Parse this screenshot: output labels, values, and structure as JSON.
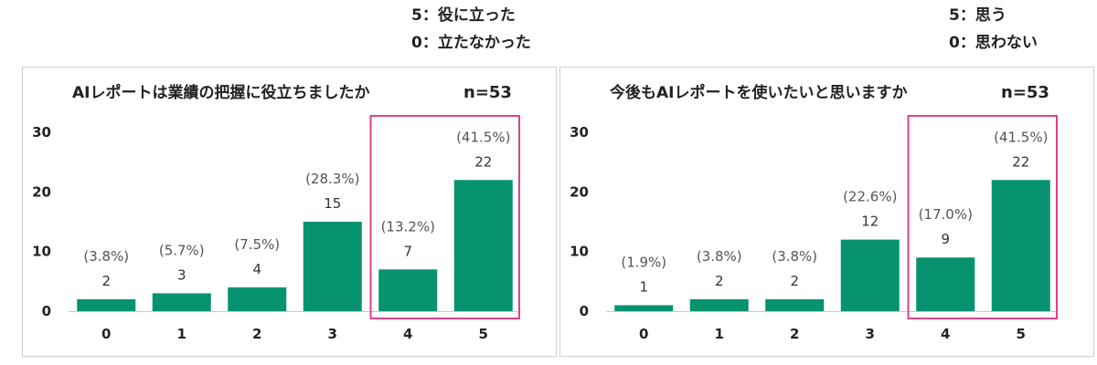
{
  "legends": [
    {
      "line1": "5：役に立った",
      "line2": "0：立たなかった"
    },
    {
      "line1": "5：思う",
      "line2": "0：思わない"
    }
  ],
  "colors": {
    "bar": "#079270",
    "highlight": "#e0418a",
    "axis": "#c8c8c8"
  },
  "chart_data": [
    {
      "type": "bar",
      "title": "AIレポートは業績の把握に役立ちましたか",
      "n_label": "n=53",
      "categories": [
        "0",
        "1",
        "2",
        "3",
        "4",
        "5"
      ],
      "values": [
        2,
        3,
        4,
        15,
        7,
        22
      ],
      "percent_labels": [
        "(3.8%)",
        "(5.7%)",
        "(7.5%)",
        "(28.3%)",
        "(13.2%)",
        "(41.5%)"
      ],
      "ylim": [
        0,
        30
      ],
      "yticks": [
        "0",
        "10",
        "20",
        "30"
      ],
      "highlighted_categories": [
        "4",
        "5"
      ],
      "grid": false
    },
    {
      "type": "bar",
      "title": "今後もAIレポートを使いたいと思いますか",
      "n_label": "n=53",
      "categories": [
        "0",
        "1",
        "2",
        "3",
        "4",
        "5"
      ],
      "values": [
        1,
        2,
        2,
        12,
        9,
        22
      ],
      "percent_labels": [
        "(1.9%)",
        "(3.8%)",
        "(3.8%)",
        "(22.6%)",
        "(17.0%)",
        "(41.5%)"
      ],
      "ylim": [
        0,
        30
      ],
      "yticks": [
        "0",
        "10",
        "20",
        "30"
      ],
      "highlighted_categories": [
        "4",
        "5"
      ],
      "grid": false
    }
  ]
}
